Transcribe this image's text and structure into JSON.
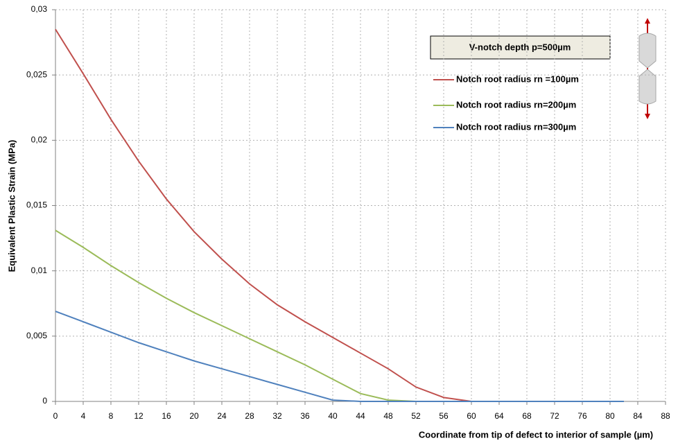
{
  "chart_data": {
    "type": "line",
    "x_label": "Coordinate from  tip of defect to interior of sample (µm)",
    "y_label": "Equivalent Plastic Strain (MPa)",
    "annotation": "V-notch depth p=500µm",
    "x": [
      0,
      4,
      8,
      12,
      16,
      20,
      24,
      28,
      32,
      36,
      40,
      44,
      48,
      52,
      56,
      60,
      64,
      68,
      72,
      76,
      80,
      82
    ],
    "series": [
      {
        "name": "Notch root radius rn =100µm",
        "color": "#c0504d",
        "values": [
          0.0285,
          0.0251,
          0.0216,
          0.0184,
          0.0155,
          0.013,
          0.0109,
          0.009,
          0.0074,
          0.0061,
          0.0049,
          0.0037,
          0.0025,
          0.0011,
          0.0003,
          0,
          0,
          0,
          0,
          0,
          0,
          0
        ]
      },
      {
        "name": "Notch root radius rn=200µm",
        "color": "#9bbb59",
        "values": [
          0.0131,
          0.0118,
          0.0104,
          0.0091,
          0.0079,
          0.0068,
          0.0058,
          0.0048,
          0.0038,
          0.0028,
          0.0017,
          0.0006,
          0.0001,
          0,
          0,
          0,
          0,
          0,
          0,
          0,
          0,
          0
        ]
      },
      {
        "name": "Notch root radius rn=300µm",
        "color": "#4f81bd",
        "values": [
          0.0069,
          0.0061,
          0.0053,
          0.0045,
          0.0038,
          0.0031,
          0.0025,
          0.0019,
          0.0013,
          0.0007,
          0.0001,
          0,
          0,
          0,
          0,
          0,
          0,
          0,
          0,
          0,
          0,
          0
        ]
      }
    ],
    "xlim": [
      0,
      88
    ],
    "xticks": [
      0,
      4,
      8,
      12,
      16,
      20,
      24,
      28,
      32,
      36,
      40,
      44,
      48,
      52,
      56,
      60,
      64,
      68,
      72,
      76,
      80,
      84,
      88
    ],
    "ylim": [
      0,
      0.03
    ],
    "yticks": [
      0,
      {
        "value": 0.005,
        "label": "0,005"
      },
      {
        "value": 0.01,
        "label": "0,01"
      },
      {
        "value": 0.015,
        "label": "0,015"
      },
      {
        "value": 0.02,
        "label": "0,02"
      },
      {
        "value": 0.025,
        "label": "0,025"
      },
      {
        "value": 0.03,
        "label": "0,03"
      }
    ],
    "grid": true
  }
}
